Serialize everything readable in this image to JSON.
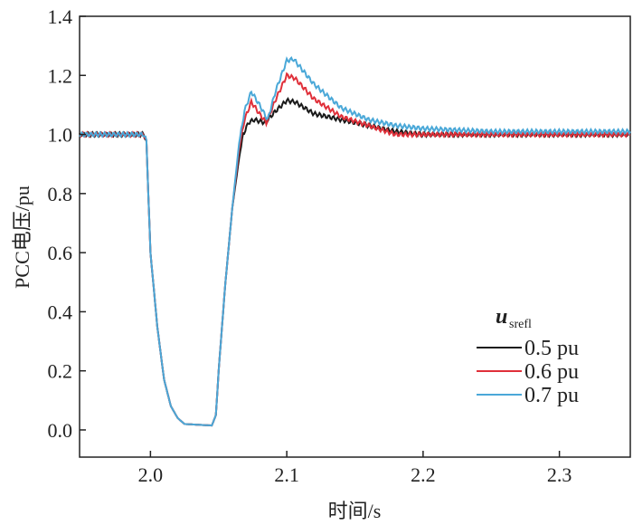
{
  "chart_data": {
    "type": "line",
    "title": "",
    "xlabel": "时间/s",
    "ylabel": "PCC电压/pu",
    "xlim": [
      1.948,
      2.352
    ],
    "ylim": [
      -0.092,
      1.4
    ],
    "xticks": [
      2.0,
      2.1,
      2.2,
      2.3
    ],
    "xtick_labels": [
      "2.0",
      "2.1",
      "2.2",
      "2.3"
    ],
    "yticks": [
      0,
      0.2,
      0.4,
      0.6,
      0.8,
      1.0,
      1.2,
      1.4
    ],
    "ytick_labels": [
      "0.0",
      "0.2",
      "0.4",
      "0.6",
      "0.8",
      "1.0",
      "1.2",
      "1.4"
    ],
    "grid": false,
    "legend": {
      "title_main": "u",
      "title_sub": "srefl",
      "placement": "lower-right"
    },
    "series": [
      {
        "name": "0.5 pu",
        "color": "#1a1a1a",
        "points": [
          [
            1.948,
            1.0
          ],
          [
            1.995,
            1.0
          ],
          [
            1.997,
            0.98
          ],
          [
            2.0,
            0.6
          ],
          [
            2.005,
            0.35
          ],
          [
            2.01,
            0.17
          ],
          [
            2.015,
            0.08
          ],
          [
            2.02,
            0.04
          ],
          [
            2.025,
            0.02
          ],
          [
            2.045,
            0.015
          ],
          [
            2.048,
            0.05
          ],
          [
            2.05,
            0.2
          ],
          [
            2.055,
            0.5
          ],
          [
            2.06,
            0.75
          ],
          [
            2.065,
            0.92
          ],
          [
            2.068,
            1.0
          ],
          [
            2.072,
            1.04
          ],
          [
            2.076,
            1.05
          ],
          [
            2.084,
            1.04
          ],
          [
            2.092,
            1.08
          ],
          [
            2.1,
            1.115
          ],
          [
            2.106,
            1.11
          ],
          [
            2.12,
            1.07
          ],
          [
            2.14,
            1.05
          ],
          [
            2.16,
            1.03
          ],
          [
            2.18,
            1.01
          ],
          [
            2.2,
            1.0
          ],
          [
            2.25,
            1.0
          ],
          [
            2.352,
            1.0
          ]
        ]
      },
      {
        "name": "0.6 pu",
        "color": "#e0303a",
        "points": [
          [
            1.948,
            1.0
          ],
          [
            1.995,
            1.0
          ],
          [
            1.997,
            0.98
          ],
          [
            2.0,
            0.6
          ],
          [
            2.005,
            0.35
          ],
          [
            2.01,
            0.17
          ],
          [
            2.015,
            0.08
          ],
          [
            2.02,
            0.04
          ],
          [
            2.025,
            0.02
          ],
          [
            2.045,
            0.015
          ],
          [
            2.048,
            0.05
          ],
          [
            2.05,
            0.2
          ],
          [
            2.055,
            0.5
          ],
          [
            2.06,
            0.75
          ],
          [
            2.065,
            0.95
          ],
          [
            2.069,
            1.05
          ],
          [
            2.074,
            1.11
          ],
          [
            2.08,
            1.07
          ],
          [
            2.085,
            1.04
          ],
          [
            2.092,
            1.12
          ],
          [
            2.1,
            1.2
          ],
          [
            2.106,
            1.19
          ],
          [
            2.12,
            1.12
          ],
          [
            2.14,
            1.06
          ],
          [
            2.16,
            1.03
          ],
          [
            2.18,
            1.0
          ],
          [
            2.2,
            1.0
          ],
          [
            2.25,
            1.0
          ],
          [
            2.352,
            1.0
          ]
        ]
      },
      {
        "name": "0.7 pu",
        "color": "#4aa8d8",
        "points": [
          [
            1.948,
            1.0
          ],
          [
            1.995,
            1.0
          ],
          [
            1.997,
            0.98
          ],
          [
            2.0,
            0.6
          ],
          [
            2.005,
            0.35
          ],
          [
            2.01,
            0.17
          ],
          [
            2.015,
            0.08
          ],
          [
            2.02,
            0.04
          ],
          [
            2.025,
            0.02
          ],
          [
            2.045,
            0.015
          ],
          [
            2.048,
            0.05
          ],
          [
            2.05,
            0.2
          ],
          [
            2.055,
            0.5
          ],
          [
            2.06,
            0.75
          ],
          [
            2.065,
            0.97
          ],
          [
            2.069,
            1.08
          ],
          [
            2.074,
            1.145
          ],
          [
            2.08,
            1.1
          ],
          [
            2.086,
            1.05
          ],
          [
            2.092,
            1.15
          ],
          [
            2.1,
            1.25
          ],
          [
            2.105,
            1.255
          ],
          [
            2.12,
            1.17
          ],
          [
            2.14,
            1.09
          ],
          [
            2.16,
            1.05
          ],
          [
            2.18,
            1.03
          ],
          [
            2.2,
            1.02
          ],
          [
            2.25,
            1.01
          ],
          [
            2.352,
            1.01
          ]
        ]
      }
    ]
  }
}
